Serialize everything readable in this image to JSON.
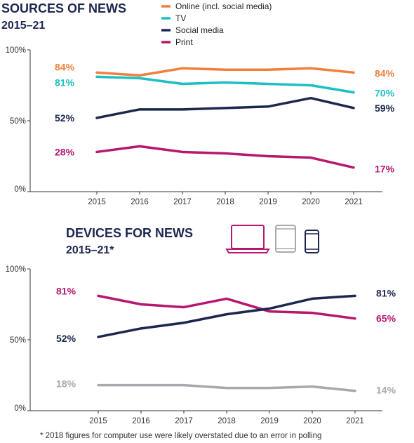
{
  "footnote": "* 2018 figures for computer use were likely overstated due to an error in polling",
  "chart_data": [
    {
      "type": "line",
      "title": "SOURCES OF NEWS",
      "subtitle": "2015–21",
      "x": [
        "2015",
        "2016",
        "2017",
        "2018",
        "2019",
        "2020",
        "2021"
      ],
      "ylim": [
        0,
        100
      ],
      "yticks": [
        "0%",
        "50%",
        "100%"
      ],
      "legend_position": "top-right",
      "grid": false,
      "series": [
        {
          "name": "Online (incl. social media)",
          "color": "#f07f3c",
          "values": [
            84,
            82,
            87,
            86,
            86,
            87,
            84
          ],
          "start_label": "84%",
          "end_label": "84%"
        },
        {
          "name": "TV",
          "color": "#1ebfc2",
          "values": [
            81,
            80,
            76,
            77,
            76,
            75,
            70
          ],
          "start_label": "81%",
          "end_label": "70%"
        },
        {
          "name": "Social media",
          "color": "#1c2750",
          "values": [
            52,
            58,
            58,
            59,
            60,
            66,
            59
          ],
          "start_label": "52%",
          "end_label": "59%"
        },
        {
          "name": "Print",
          "color": "#b5186e",
          "values": [
            28,
            32,
            28,
            27,
            25,
            24,
            17
          ],
          "start_label": "28%",
          "end_label": "17%"
        }
      ]
    },
    {
      "type": "line",
      "title": "DEVICES FOR NEWS",
      "subtitle": "2015–21*",
      "x": [
        "2015",
        "2016",
        "2017",
        "2018",
        "2019",
        "2020",
        "2021"
      ],
      "ylim": [
        0,
        100
      ],
      "yticks": [
        "0%",
        "50%",
        "100%"
      ],
      "legend_position": "top-right",
      "legend_icons": [
        "laptop-icon",
        "tablet-icon",
        "smartphone-icon"
      ],
      "grid": false,
      "series": [
        {
          "icon": "laptop-icon",
          "color": "#b5186e",
          "values": [
            81,
            75,
            73,
            79,
            70,
            69,
            65
          ],
          "start_label": "81%",
          "end_label": "65%"
        },
        {
          "icon": "smartphone-icon",
          "color": "#1c2750",
          "values": [
            52,
            58,
            62,
            68,
            72,
            79,
            81
          ],
          "start_label": "52%",
          "end_label": "81%"
        },
        {
          "icon": "tablet-icon",
          "color": "#a7a9ac",
          "values": [
            18,
            18,
            18,
            16,
            16,
            17,
            14
          ],
          "start_label": "18%",
          "end_label": "14%"
        }
      ]
    }
  ]
}
